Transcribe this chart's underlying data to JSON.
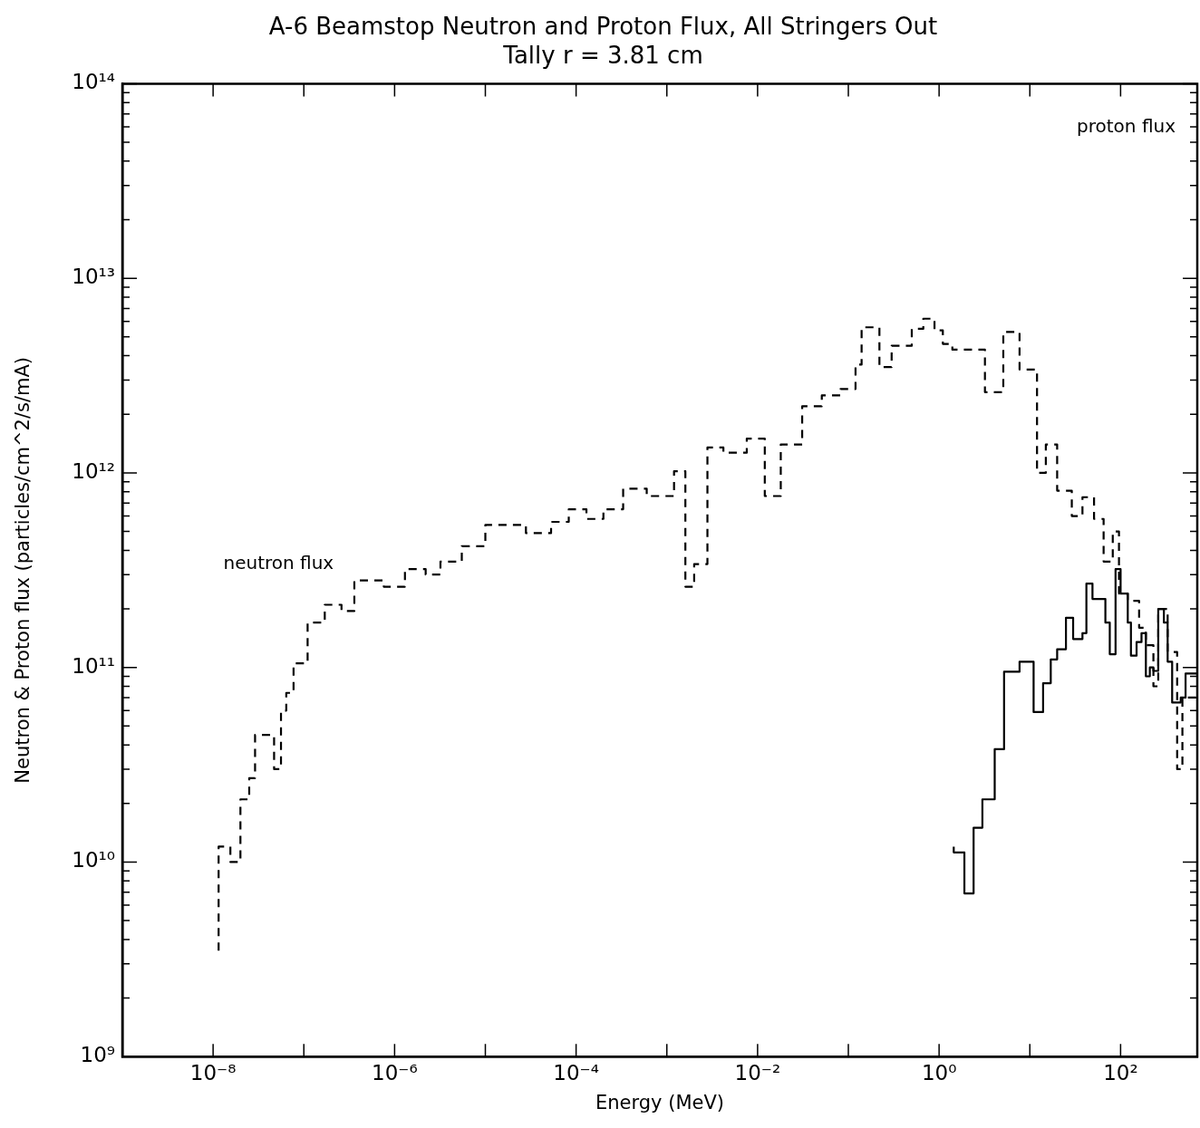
{
  "chart_data": {
    "type": "step",
    "title": "A-6 Beamstop Neutron and Proton Flux, All Stringers Out",
    "subtitle": "Tally r = 3.81 cm",
    "xlabel": "Energy (MeV)",
    "ylabel": "Neutron & Proton flux (particles/cm^2/s/mA)",
    "log": "xy",
    "marker": "none",
    "xlim": [
      1e-09,
      700
    ],
    "xticks": [
      {
        "value": 1e-09,
        "label": null
      },
      {
        "value": 1e-08,
        "label": "10⁻⁸"
      },
      {
        "value": 1e-07,
        "label": null
      },
      {
        "value": 1e-06,
        "label": "10⁻⁶"
      },
      {
        "value": 1e-05,
        "label": null
      },
      {
        "value": 0.0001,
        "label": "10⁻⁴"
      },
      {
        "value": 0.001,
        "label": null
      },
      {
        "value": 0.01,
        "label": "10⁻²"
      },
      {
        "value": 0.1,
        "label": null
      },
      {
        "value": 1,
        "label": "10⁰"
      },
      {
        "value": 10,
        "label": null
      },
      {
        "value": 100,
        "label": "10²"
      }
    ],
    "ylim": [
      1000000000.0,
      100000000000000.0
    ],
    "yticks": [
      {
        "value": 1000000000.0,
        "label": "10⁹"
      },
      {
        "value": 2000000000.0,
        "label": null
      },
      {
        "value": 3000000000.0,
        "label": null
      },
      {
        "value": 4000000000.0,
        "label": null
      },
      {
        "value": 5000000000.0,
        "label": null
      },
      {
        "value": 6000000000.0,
        "label": null
      },
      {
        "value": 7000000000.0,
        "label": null
      },
      {
        "value": 8000000000.0,
        "label": null
      },
      {
        "value": 9000000000.0,
        "label": null
      },
      {
        "value": 10000000000.0,
        "label": "10¹⁰"
      },
      {
        "value": 20000000000.0,
        "label": null
      },
      {
        "value": 30000000000.0,
        "label": null
      },
      {
        "value": 40000000000.0,
        "label": null
      },
      {
        "value": 50000000000.0,
        "label": null
      },
      {
        "value": 60000000000.0,
        "label": null
      },
      {
        "value": 70000000000.0,
        "label": null
      },
      {
        "value": 80000000000.0,
        "label": null
      },
      {
        "value": 90000000000.0,
        "label": null
      },
      {
        "value": 100000000000.0,
        "label": "10¹¹"
      },
      {
        "value": 200000000000.0,
        "label": null
      },
      {
        "value": 300000000000.0,
        "label": null
      },
      {
        "value": 400000000000.0,
        "label": null
      },
      {
        "value": 500000000000.0,
        "label": null
      },
      {
        "value": 600000000000.0,
        "label": null
      },
      {
        "value": 700000000000.0,
        "label": null
      },
      {
        "value": 800000000000.0,
        "label": null
      },
      {
        "value": 900000000000.0,
        "label": null
      },
      {
        "value": 1000000000000.0,
        "label": "10¹²"
      },
      {
        "value": 2000000000000.0,
        "label": null
      },
      {
        "value": 3000000000000.0,
        "label": null
      },
      {
        "value": 4000000000000.0,
        "label": null
      },
      {
        "value": 5000000000000.0,
        "label": null
      },
      {
        "value": 6000000000000.0,
        "label": null
      },
      {
        "value": 7000000000000.0,
        "label": null
      },
      {
        "value": 8000000000000.0,
        "label": null
      },
      {
        "value": 9000000000000.0,
        "label": null
      },
      {
        "value": 10000000000000.0,
        "label": "10¹³"
      },
      {
        "value": 20000000000000.0,
        "label": null
      },
      {
        "value": 30000000000000.0,
        "label": null
      },
      {
        "value": 40000000000000.0,
        "label": null
      },
      {
        "value": 50000000000000.0,
        "label": null
      },
      {
        "value": 60000000000000.0,
        "label": null
      },
      {
        "value": 70000000000000.0,
        "label": null
      },
      {
        "value": 80000000000000.0,
        "label": null
      },
      {
        "value": 90000000000000.0,
        "label": null
      },
      {
        "value": 100000000000000.0,
        "label": "10¹⁴"
      }
    ],
    "series": [
      {
        "name": "neutron flux",
        "color": "#000000",
        "line_style": "dashed",
        "x": [
          1.15e-08,
          1.55e-08,
          2e-08,
          2.5e-08,
          2.9e-08,
          4.7e-08,
          5.6e-08,
          6.4e-08,
          7.7e-08,
          1.1e-07,
          1.7e-07,
          2.6e-07,
          3.6e-07,
          7.6e-07,
          1.3e-06,
          2.2e-06,
          3.2e-06,
          5.5e-06,
          1e-05,
          2.8e-05,
          5.3e-05,
          8.3e-05,
          0.00013,
          0.0002,
          0.00033,
          0.0006,
          0.0012,
          0.0016,
          0.002,
          0.0028,
          0.0042,
          0.0076,
          0.012,
          0.018,
          0.031,
          0.051,
          0.082,
          0.12,
          0.14,
          0.22,
          0.3,
          0.5,
          0.67,
          0.89,
          1.1,
          1.4,
          3.2,
          5.1,
          7.7,
          12,
          15,
          20,
          29,
          38,
          51,
          65,
          82,
          96,
          120,
          160,
          190,
          230,
          260,
          330,
          420,
          480,
          600,
          700
        ],
        "values": [
          3500000000.0,
          12000000000.0,
          10000000000.0,
          21000000000.0,
          27000000000.0,
          45000000000.0,
          30000000000.0,
          60000000000.0,
          74000000000.0,
          105000000000.0,
          170000000000.0,
          210000000000.0,
          195000000000.0,
          280000000000.0,
          260000000000.0,
          320000000000.0,
          300000000000.0,
          350000000000.0,
          420000000000.0,
          540000000000.0,
          490000000000.0,
          560000000000.0,
          650000000000.0,
          580000000000.0,
          650000000000.0,
          830000000000.0,
          760000000000.0,
          1020000000000.0,
          260000000000.0,
          340000000000.0,
          1350000000000.0,
          1270000000000.0,
          1500000000000.0,
          760000000000.0,
          1400000000000.0,
          2200000000000.0,
          2500000000000.0,
          2700000000000.0,
          3600000000000.0,
          5600000000000.0,
          3500000000000.0,
          4500000000000.0,
          5500000000000.0,
          6200000000000.0,
          5400000000000.0,
          4600000000000.0,
          4300000000000.0,
          2600000000000.0,
          5300000000000.0,
          3400000000000.0,
          1000000000000.0,
          1400000000000.0,
          810000000000.0,
          600000000000.0,
          750000000000.0,
          580000000000.0,
          350000000000.0,
          500000000000.0,
          240000000000.0,
          220000000000.0,
          160000000000.0,
          130000000000.0,
          80000000000.0,
          200000000000.0,
          120000000000.0,
          30000000000.0,
          70000000000.0,
          70000000000.0
        ]
      },
      {
        "name": "proton flux",
        "color": "#000000",
        "line_style": "solid",
        "x": [
          1.45,
          1.9,
          2.4,
          3.0,
          4.1,
          5.2,
          7.7,
          11,
          14,
          17,
          20,
          25,
          30,
          38,
          42,
          49,
          68,
          76,
          88,
          100,
          120,
          130,
          150,
          170,
          190,
          210,
          230,
          260,
          300,
          330,
          370,
          460,
          520,
          590,
          700
        ],
        "values": [
          12000000000.0,
          11200000000.0,
          6900000000.0,
          15000000000.0,
          21000000000.0,
          38000000000.0,
          95000000000.0,
          107000000000.0,
          59000000000.0,
          83000000000.0,
          110000000000.0,
          124000000000.0,
          180000000000.0,
          140000000000.0,
          150000000000.0,
          270000000000.0,
          225000000000.0,
          170000000000.0,
          117000000000.0,
          320000000000.0,
          240000000000.0,
          170000000000.0,
          115000000000.0,
          135000000000.0,
          150000000000.0,
          90000000000.0,
          100000000000.0,
          96000000000.0,
          200000000000.0,
          170000000000.0,
          107000000000.0,
          66000000000.0,
          70000000000.0,
          93000000000.0,
          93000000000.0
        ]
      }
    ]
  }
}
